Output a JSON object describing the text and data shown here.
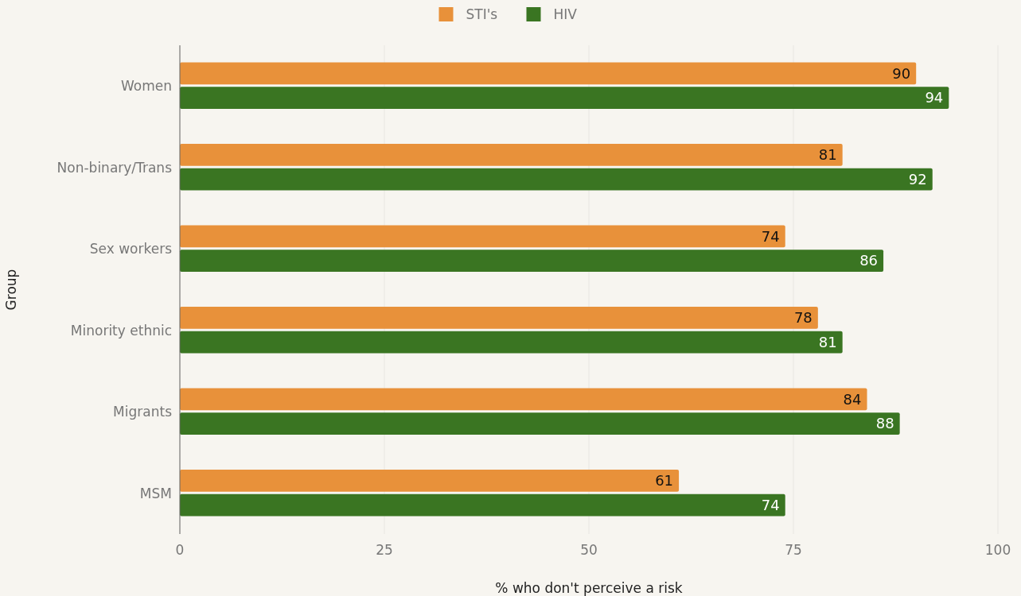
{
  "chart_data": {
    "type": "bar",
    "orientation": "horizontal",
    "xlabel": "% who don't perceive a risk",
    "ylabel": "Group",
    "categories": [
      "Women",
      "Non-binary/Trans",
      "Sex workers",
      "Minority ethnic",
      "Migrants",
      "MSM"
    ],
    "series": [
      {
        "name": "STI's",
        "color": "#e8913a",
        "values": [
          90,
          81,
          74,
          78,
          84,
          61
        ]
      },
      {
        "name": "HIV",
        "color": "#3a7522",
        "values": [
          94,
          92,
          86,
          81,
          88,
          74
        ]
      }
    ],
    "xlim": [
      0,
      100
    ],
    "xticks": [
      0,
      25,
      50,
      75,
      100
    ],
    "grid": "x",
    "legend": "top",
    "data_labels": true
  }
}
